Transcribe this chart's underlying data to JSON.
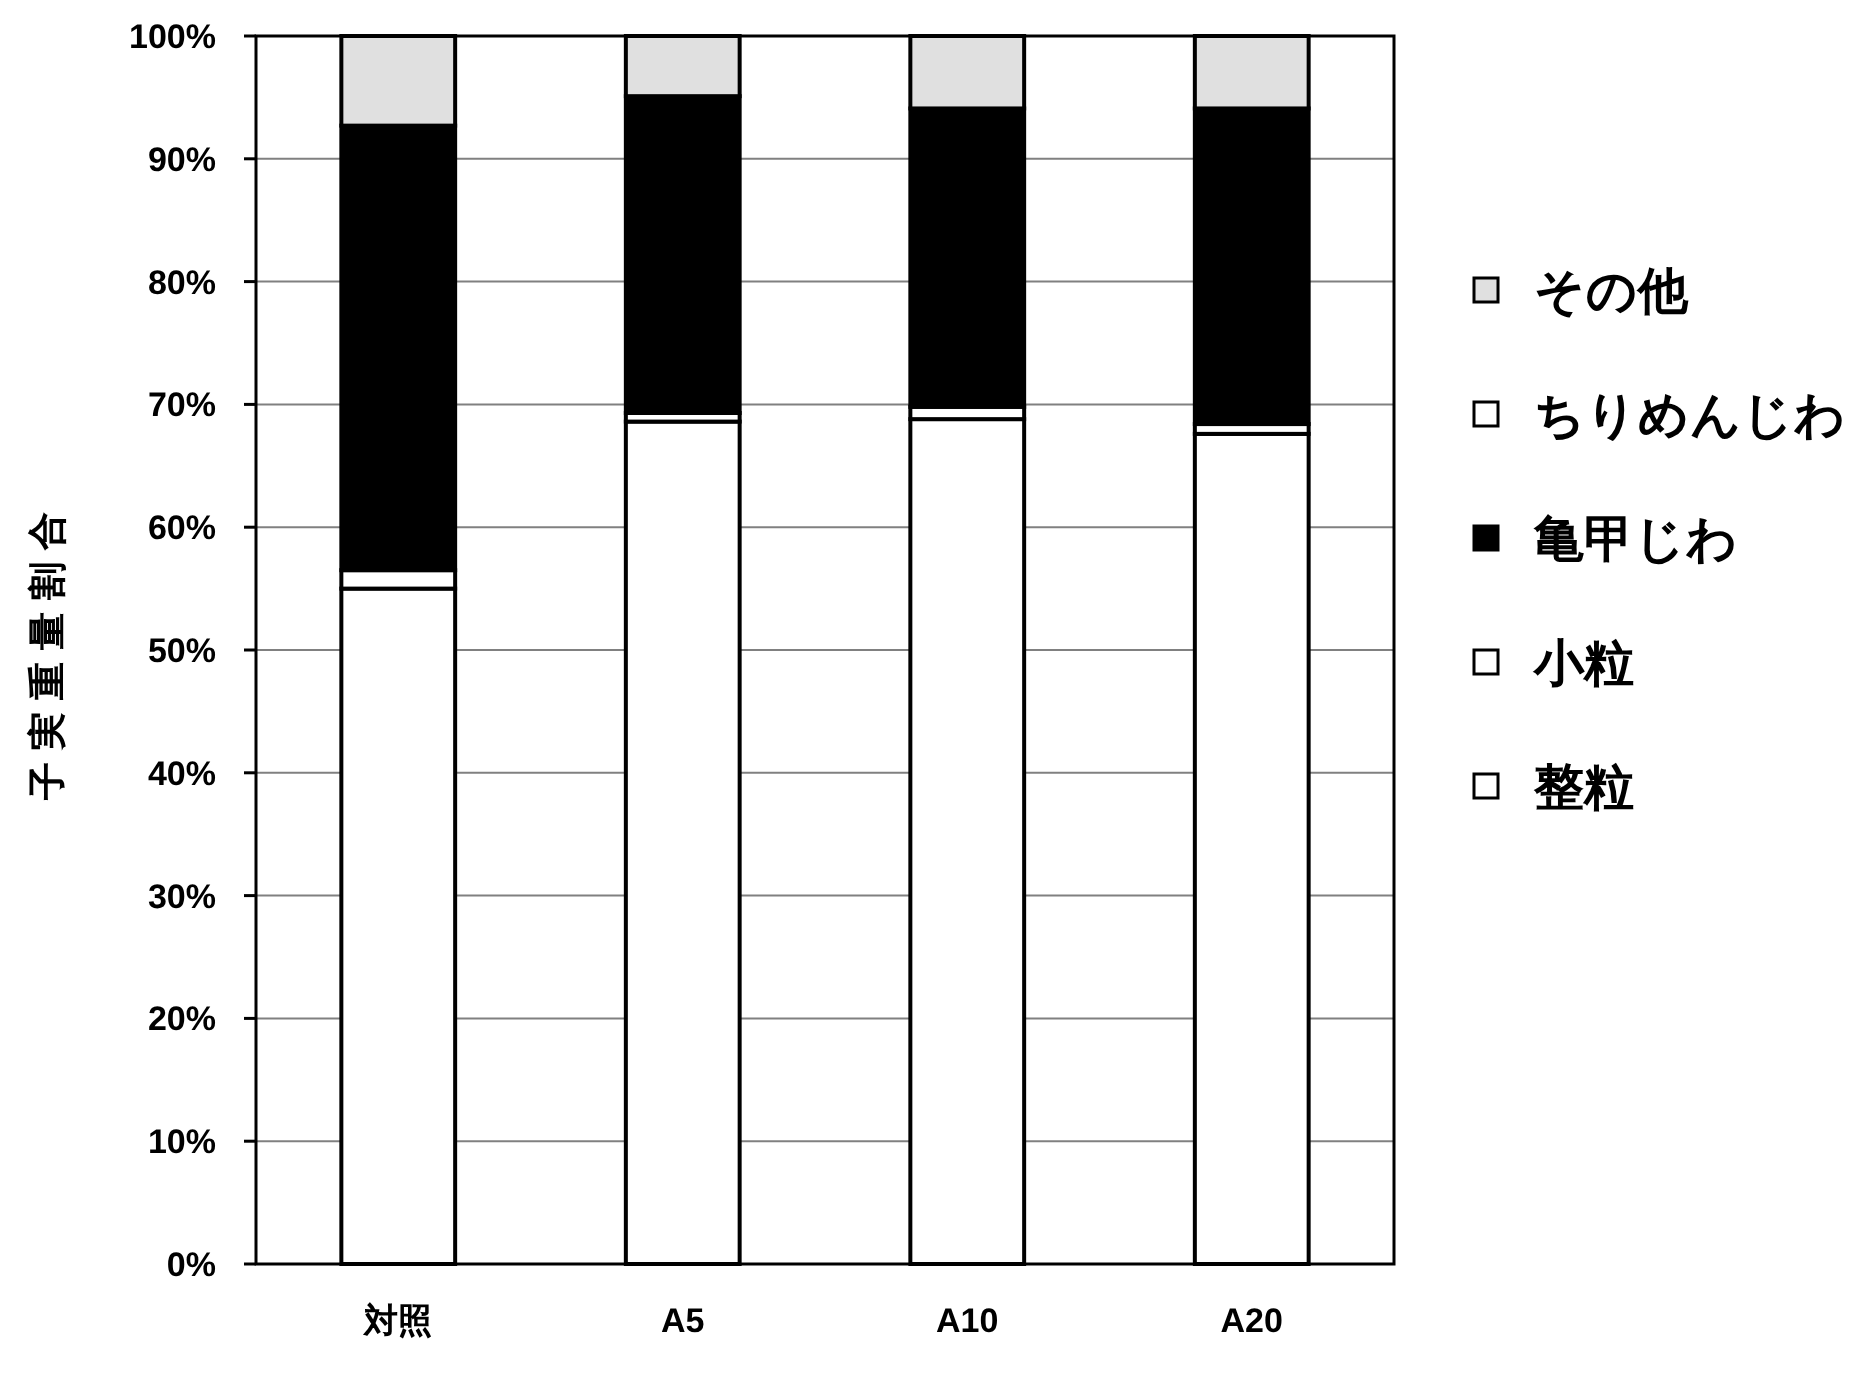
{
  "chart_data": {
    "type": "bar",
    "stacked": true,
    "ylabel": "子実重量割合",
    "categories": [
      "対照",
      "A5",
      "A10",
      "A20"
    ],
    "series": [
      {
        "name": "整粒",
        "color": "#ffffff",
        "values": [
          55,
          68.6,
          68.8,
          67.6
        ]
      },
      {
        "name": "小粒",
        "color": "#ffffff",
        "values": [
          1.5,
          0.7,
          1.0,
          0.8
        ]
      },
      {
        "name": "亀甲じわ",
        "color": "#000000",
        "values": [
          36.2,
          25.8,
          24.3,
          25.7
        ]
      },
      {
        "name": "ちりめんじわ",
        "color": "#ffffff",
        "values": [
          0,
          0,
          0,
          0
        ]
      },
      {
        "name": "その他",
        "color": "#e0e0e0",
        "values": [
          7.3,
          4.9,
          5.9,
          5.9
        ]
      }
    ],
    "ylim": [
      0,
      100
    ],
    "yticks": [
      {
        "value": 0,
        "label": "0%"
      },
      {
        "value": 10,
        "label": "10%"
      },
      {
        "value": 20,
        "label": "20%"
      },
      {
        "value": 30,
        "label": "30%"
      },
      {
        "value": 40,
        "label": "40%"
      },
      {
        "value": 50,
        "label": "50%"
      },
      {
        "value": 60,
        "label": "60%"
      },
      {
        "value": 70,
        "label": "70%"
      },
      {
        "value": 80,
        "label": "80%"
      },
      {
        "value": 90,
        "label": "90%"
      },
      {
        "value": 100,
        "label": "100%"
      }
    ],
    "grid": "y",
    "legend": "right"
  }
}
